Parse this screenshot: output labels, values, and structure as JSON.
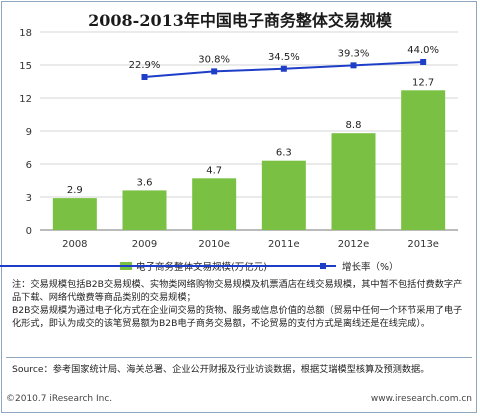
{
  "chart_data": {
    "type": "bar",
    "title": "2008-2013年中国电子商务整体交易规模",
    "categories": [
      "2008",
      "2009",
      "2010e",
      "2011e",
      "2012e",
      "2013e"
    ],
    "series": [
      {
        "name": "电子商务整体交易规模(万亿元)",
        "type": "bar",
        "values": [
          2.9,
          3.6,
          4.7,
          6.3,
          8.8,
          12.7
        ],
        "color": "#7ac143"
      },
      {
        "name": "增长率（%）",
        "type": "line",
        "x": [
          "2009",
          "2010e",
          "2011e",
          "2012e",
          "2013e"
        ],
        "values": [
          "22.9%",
          "30.8%",
          "34.5%",
          "39.3%",
          "44.0%"
        ],
        "color": "#1f3ec8"
      }
    ],
    "ylim": [
      0,
      18
    ],
    "yticks": [
      0,
      3,
      6,
      9,
      12,
      15,
      18
    ],
    "grid": true,
    "legend": "bottom"
  },
  "notes": [
    "注：交易规模包括B2B交易规模、实物类网络购物交易规模及机票酒店在线交易规模，其中暂不包括付费数字产品下载、网络代缴费等商品类别的交易规模；",
    "B2B交易规模为通过电子化方式在企业间交易的货物、服务或信息价值的总额（贸易中任何一个环节采用了电子化形式，即认为成交的该笔贸易额为B2B电子商务交易额，不论贸易的支付方式是离线还是在线完成）。"
  ],
  "source": "Source：参考国家统计局、海关总署、企业公开财报及行业访谈数据，根据艾瑞模型核算及预测数据。",
  "copyright": "©2010.7 iResearch Inc.",
  "website": "www.iresearch.com.cn"
}
